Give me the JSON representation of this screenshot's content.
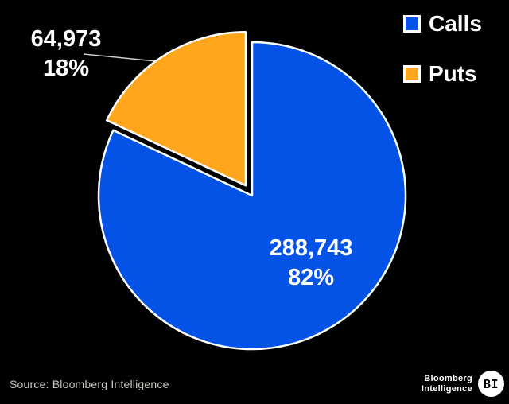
{
  "chart_data": {
    "type": "pie",
    "title": "",
    "background": "#000000",
    "legend_position": "top-right",
    "start_angle_deg_from_top": 0,
    "direction": "clockwise",
    "series": [
      {
        "name": "Calls",
        "value": 288743,
        "pct": 82,
        "value_label": "288,743",
        "pct_label": "82%",
        "color": "#0553e6",
        "exploded": false
      },
      {
        "name": "Puts",
        "value": 64973,
        "pct": 18,
        "value_label": "64,973",
        "pct_label": "18%",
        "color": "#ffa61c",
        "exploded": true
      }
    ]
  },
  "footer": {
    "source": "Source: Bloomberg Intelligence",
    "brand": {
      "line1": "Bloomberg",
      "line2": "Intelligence",
      "badge": "BI"
    }
  }
}
